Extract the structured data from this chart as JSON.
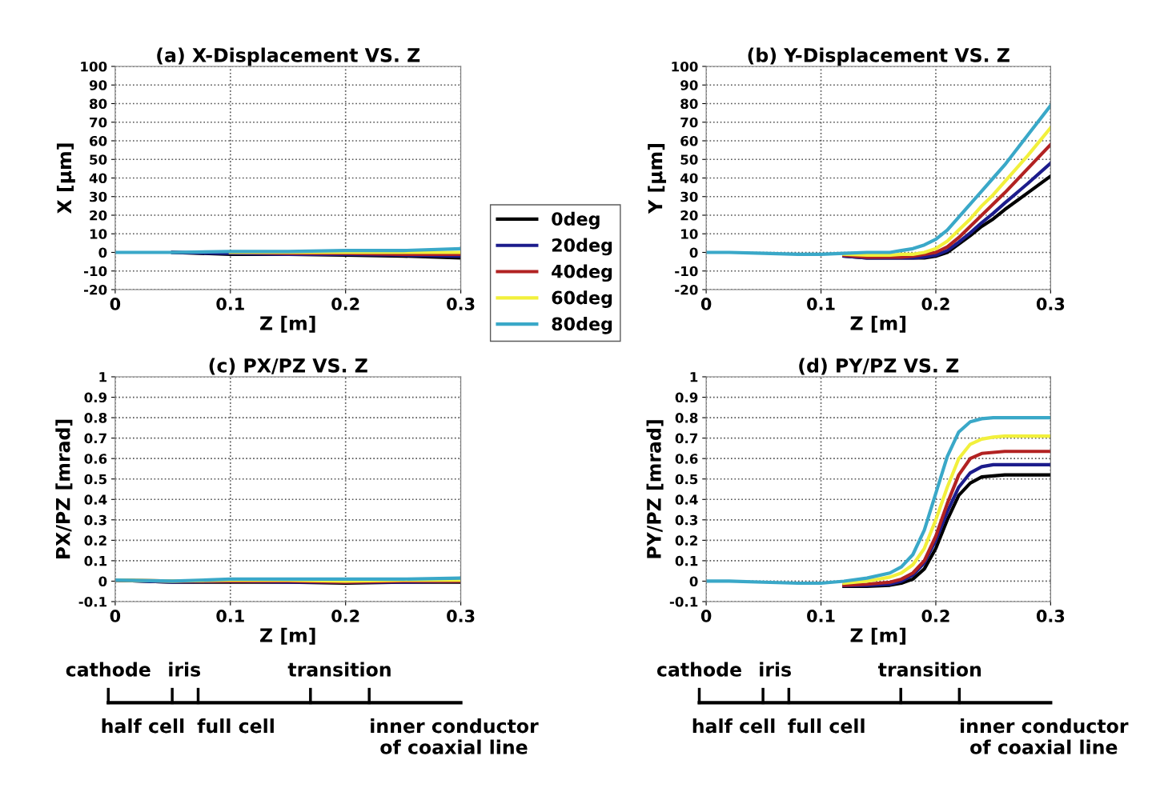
{
  "chart_data": [
    {
      "type": "line",
      "title": "(a) X-Displacement VS. Z",
      "xlabel": "Z [m]",
      "ylabel": "X [μm]",
      "x": [
        0,
        0.05,
        0.1,
        0.15,
        0.2,
        0.25,
        0.3
      ],
      "xlim": [
        0,
        0.3
      ],
      "xticks": [
        0,
        0.1,
        0.2,
        0.3
      ],
      "ylim": [
        -20,
        100
      ],
      "yticks": [
        -20,
        -10,
        0,
        10,
        20,
        30,
        40,
        50,
        60,
        70,
        80,
        90,
        100
      ],
      "grid": true,
      "legend": "right",
      "line_style": "solid",
      "series": [
        {
          "name": "0deg",
          "color": "#000000",
          "values": [
            null,
            0,
            -1,
            -1,
            -1.5,
            -2,
            -3
          ]
        },
        {
          "name": "20deg",
          "color": "#1c1c8c",
          "values": [
            null,
            0,
            -0.5,
            -1,
            -1,
            -1.5,
            -2
          ]
        },
        {
          "name": "40deg",
          "color": "#b22222",
          "values": [
            null,
            null,
            0,
            -0.5,
            -0.5,
            -1,
            -1
          ]
        },
        {
          "name": "60deg",
          "color": "#f2f03c",
          "values": [
            null,
            null,
            0,
            0,
            0,
            0,
            0
          ]
        },
        {
          "name": "80deg",
          "color": "#3aa8c8",
          "values": [
            0,
            0,
            0.5,
            0.5,
            1,
            1,
            2
          ]
        }
      ]
    },
    {
      "type": "line",
      "title": "(b) Y-Displacement VS. Z",
      "xlabel": "Z [m]",
      "ylabel": "Y [μm]",
      "x": [
        0,
        0.02,
        0.05,
        0.08,
        0.1,
        0.12,
        0.14,
        0.16,
        0.17,
        0.18,
        0.19,
        0.2,
        0.21,
        0.22,
        0.23,
        0.24,
        0.25,
        0.26,
        0.28,
        0.3
      ],
      "xlim": [
        0,
        0.3
      ],
      "xticks": [
        0,
        0.1,
        0.2,
        0.3
      ],
      "ylim": [
        -20,
        100
      ],
      "yticks": [
        -20,
        -10,
        0,
        10,
        20,
        30,
        40,
        50,
        60,
        70,
        80,
        90,
        100
      ],
      "grid": true,
      "line_style": "solid",
      "series": [
        {
          "color": "#000000",
          "values": [
            null,
            null,
            null,
            null,
            null,
            -2,
            -3,
            -3,
            -3,
            -3,
            -3,
            -2,
            0,
            4.5,
            9,
            14,
            18,
            23,
            32,
            41
          ]
        },
        {
          "color": "#1c1c8c",
          "values": [
            null,
            null,
            null,
            null,
            null,
            -2,
            -3,
            -3,
            -3,
            -3,
            -2.5,
            -1.5,
            1,
            5.5,
            10.5,
            16,
            21,
            26.5,
            37,
            48
          ]
        },
        {
          "color": "#b22222",
          "values": [
            null,
            null,
            null,
            null,
            null,
            -1.5,
            -2.5,
            -2.5,
            -2.5,
            -2,
            -1,
            0,
            3,
            8,
            14,
            20,
            26,
            32,
            45,
            58
          ]
        },
        {
          "color": "#f2f03c",
          "values": [
            null,
            null,
            null,
            null,
            null,
            -1,
            -1.5,
            -1.5,
            -1,
            -1,
            0,
            2,
            6,
            12,
            18,
            25,
            31,
            38,
            52,
            67
          ]
        },
        {
          "color": "#3aa8c8",
          "values": [
            0,
            0,
            -0.5,
            -1,
            -1,
            -0.5,
            0,
            0,
            1,
            2,
            4,
            7,
            12,
            19,
            26,
            33,
            40,
            47,
            63,
            79
          ]
        }
      ]
    },
    {
      "type": "line",
      "title": "(c) PX/PZ VS. Z",
      "xlabel": "Z [m]",
      "ylabel": "PX/PZ [mrad]",
      "x": [
        0,
        0.05,
        0.1,
        0.15,
        0.2,
        0.25,
        0.3
      ],
      "xlim": [
        0,
        0.3
      ],
      "xticks": [
        0,
        0.1,
        0.2,
        0.3
      ],
      "ylim": [
        -0.1,
        1
      ],
      "yticks": [
        -0.1,
        0,
        0.1,
        0.2,
        0.3,
        0.4,
        0.5,
        0.6,
        0.7,
        0.8,
        0.9,
        1
      ],
      "grid": true,
      "line_style": "solid",
      "annotations": [
        "cathode",
        "iris",
        "transition",
        "half cell",
        "full cell",
        "inner conductor\nof coaxial line"
      ],
      "series": [
        {
          "color": "#000000",
          "values": [
            0.005,
            -0.005,
            -0.005,
            -0.005,
            -0.01,
            -0.005,
            -0.005
          ]
        },
        {
          "color": "#1c1c8c",
          "values": [
            0.005,
            -0.005,
            0,
            -0.005,
            -0.005,
            -0.005,
            0
          ]
        },
        {
          "color": "#b22222",
          "values": [
            0.005,
            0,
            0,
            0,
            -0.005,
            0,
            0
          ]
        },
        {
          "color": "#f2f03c",
          "values": [
            0.005,
            0,
            0.005,
            0.005,
            0,
            0.005,
            0.005
          ]
        },
        {
          "color": "#3aa8c8",
          "values": [
            0.005,
            0,
            0.01,
            0.01,
            0.01,
            0.01,
            0.015
          ]
        }
      ]
    },
    {
      "type": "line",
      "title": "(d) PY/PZ VS. Z",
      "xlabel": "Z [m]",
      "ylabel": "PY/PZ [mrad]",
      "x": [
        0,
        0.02,
        0.05,
        0.08,
        0.1,
        0.12,
        0.14,
        0.16,
        0.17,
        0.18,
        0.19,
        0.2,
        0.21,
        0.22,
        0.23,
        0.24,
        0.25,
        0.26,
        0.28,
        0.3
      ],
      "xlim": [
        0,
        0.3
      ],
      "xticks": [
        0,
        0.1,
        0.2,
        0.3
      ],
      "ylim": [
        -0.1,
        1
      ],
      "yticks": [
        -0.1,
        0,
        0.1,
        0.2,
        0.3,
        0.4,
        0.5,
        0.6,
        0.7,
        0.8,
        0.9,
        1
      ],
      "grid": true,
      "line_style": "solid",
      "annotations": [
        "cathode",
        "iris",
        "transition",
        "half cell",
        "full cell",
        "inner conductor\nof coaxial line"
      ],
      "series": [
        {
          "color": "#000000",
          "values": [
            null,
            null,
            null,
            null,
            null,
            -0.025,
            -0.025,
            -0.02,
            -0.01,
            0.01,
            0.06,
            0.16,
            0.3,
            0.42,
            0.48,
            0.51,
            0.515,
            0.52,
            0.52,
            0.52
          ]
        },
        {
          "color": "#1c1c8c",
          "values": [
            null,
            null,
            null,
            null,
            null,
            -0.022,
            -0.02,
            -0.015,
            0,
            0.03,
            0.09,
            0.2,
            0.34,
            0.46,
            0.53,
            0.56,
            0.57,
            0.57,
            0.57,
            0.57
          ]
        },
        {
          "color": "#b22222",
          "values": [
            null,
            null,
            null,
            null,
            null,
            -0.02,
            -0.015,
            -0.005,
            0.01,
            0.04,
            0.1,
            0.22,
            0.38,
            0.52,
            0.6,
            0.625,
            0.63,
            0.635,
            0.635,
            0.635
          ]
        },
        {
          "color": "#f2f03c",
          "values": [
            null,
            null,
            null,
            null,
            null,
            -0.01,
            0,
            0.02,
            0.04,
            0.08,
            0.16,
            0.3,
            0.46,
            0.6,
            0.67,
            0.695,
            0.705,
            0.71,
            0.71,
            0.71
          ]
        },
        {
          "color": "#3aa8c8",
          "values": [
            0,
            0,
            -0.005,
            -0.01,
            -0.01,
            0,
            0.015,
            0.04,
            0.07,
            0.13,
            0.25,
            0.43,
            0.61,
            0.73,
            0.78,
            0.795,
            0.8,
            0.8,
            0.8,
            0.8
          ]
        }
      ]
    }
  ]
}
